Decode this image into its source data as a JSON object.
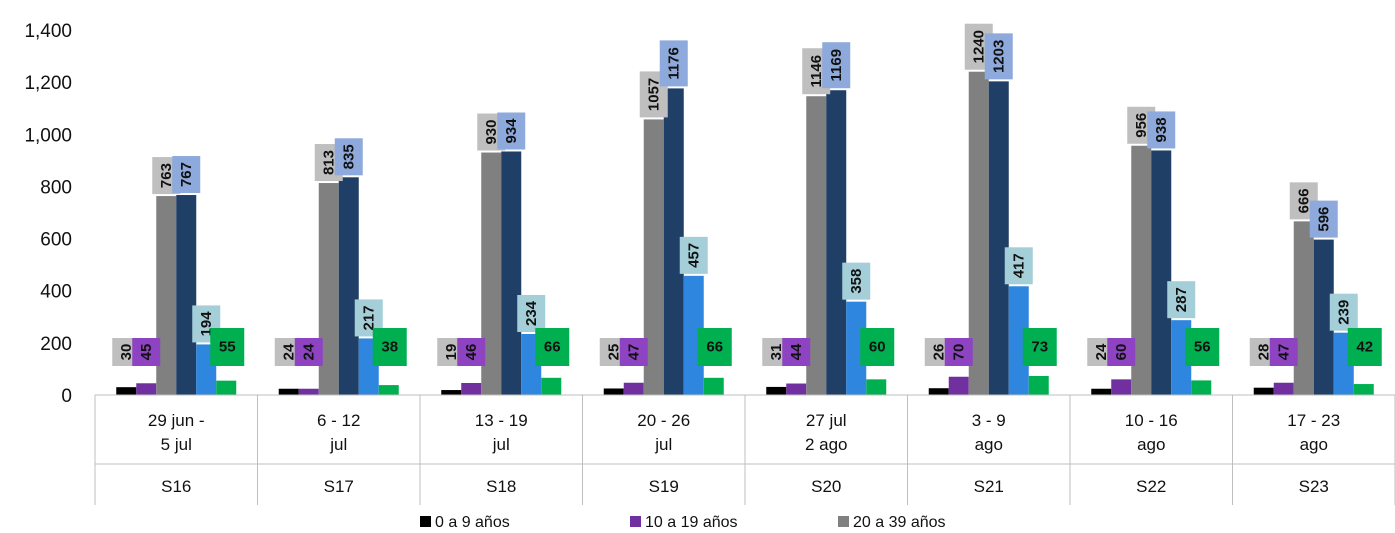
{
  "chart_data": {
    "type": "bar",
    "title": "",
    "xlabel": "",
    "ylabel": "",
    "ylim": [
      0,
      1400
    ],
    "yticks": [
      "0",
      "200",
      "400",
      "600",
      "800",
      "1,000",
      "1,200",
      "1,400"
    ],
    "ytick_values": [
      0,
      200,
      400,
      600,
      800,
      1000,
      1200,
      1400
    ],
    "grid": false,
    "legend_position": "bottom",
    "categories": [
      {
        "dates": [
          "29 jun -",
          "5 jul"
        ],
        "week": "S16"
      },
      {
        "dates": [
          "6 - 12",
          "jul"
        ],
        "week": "S17"
      },
      {
        "dates": [
          "13 - 19",
          "jul"
        ],
        "week": "S18"
      },
      {
        "dates": [
          "20 - 26",
          "jul"
        ],
        "week": "S19"
      },
      {
        "dates": [
          "27 jul",
          "2 ago"
        ],
        "week": "S20"
      },
      {
        "dates": [
          "3 - 9",
          "ago"
        ],
        "week": "S21"
      },
      {
        "dates": [
          "10 - 16",
          "ago"
        ],
        "week": "S22"
      },
      {
        "dates": [
          "17 - 23",
          "ago"
        ],
        "week": "S23"
      }
    ],
    "series": [
      {
        "name": "0 a 9 años",
        "color": "#000000",
        "label_bg": "#bfbfbf",
        "label_rotated": true,
        "in_legend": true,
        "values": [
          30,
          24,
          19,
          25,
          31,
          26,
          24,
          28
        ]
      },
      {
        "name": "10 a 19 años",
        "color": "#7030a0",
        "label_bg": "#8e44c2",
        "label_rotated": true,
        "in_legend": true,
        "values": [
          45,
          24,
          46,
          47,
          44,
          70,
          60,
          47
        ]
      },
      {
        "name": "20 a 39 años",
        "color": "#808080",
        "label_bg": "#bfbfbf",
        "label_rotated": true,
        "in_legend": true,
        "values": [
          763,
          813,
          930,
          1057,
          1146,
          1240,
          956,
          666
        ]
      },
      {
        "color": "#1f3f66",
        "label_bg": "#8ea9db",
        "label_rotated": true,
        "in_legend": false,
        "values": [
          767,
          835,
          934,
          1176,
          1169,
          1203,
          938,
          596
        ]
      },
      {
        "color": "#2e86de",
        "label_bg": "#a4cfd8",
        "label_rotated": true,
        "in_legend": false,
        "values": [
          194,
          217,
          234,
          457,
          358,
          417,
          287,
          239
        ]
      },
      {
        "color": "#00b050",
        "label_bg": "#00b050",
        "label_rotated": false,
        "in_legend": false,
        "values": [
          55,
          38,
          66,
          66,
          60,
          73,
          56,
          42
        ]
      }
    ]
  }
}
